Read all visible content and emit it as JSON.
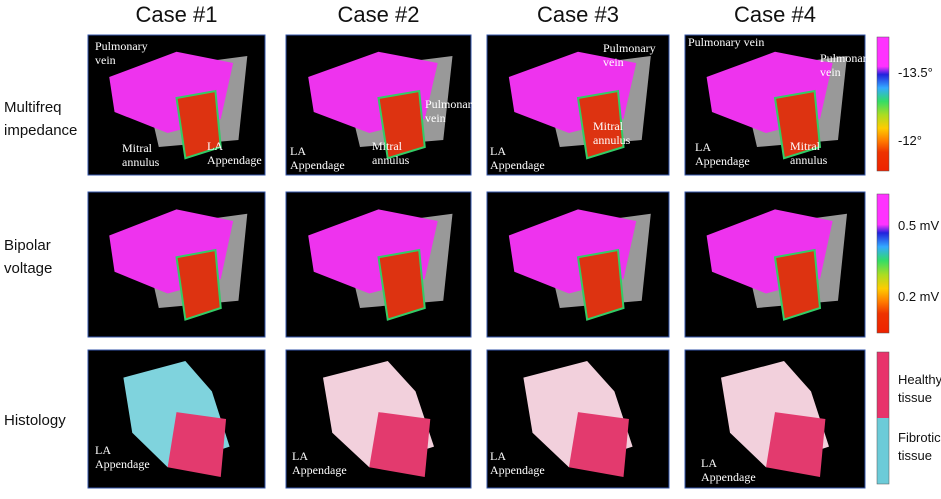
{
  "columns": [
    "Case #1",
    "Case #2",
    "Case #3",
    "Case #4"
  ],
  "rows": [
    {
      "label": [
        "Multifreq",
        "impedance"
      ],
      "panels": [
        {
          "annotations": [
            {
              "lines": [
                "Pulmonary",
                "vein"
              ]
            },
            {
              "lines": [
                "Mitral",
                "annulus"
              ]
            },
            {
              "lines": [
                "LA",
                "Appendage"
              ]
            }
          ]
        },
        {
          "annotations": [
            {
              "lines": [
                "Pulmonary",
                "vein"
              ]
            },
            {
              "lines": [
                "LA",
                "Appendage"
              ]
            },
            {
              "lines": [
                "Mitral",
                "annulus"
              ]
            }
          ]
        },
        {
          "annotations": [
            {
              "lines": [
                "Pulmonary",
                "vein"
              ]
            },
            {
              "lines": [
                "Mitral",
                "annulus"
              ]
            },
            {
              "lines": [
                "LA",
                "Appendage"
              ]
            }
          ]
        },
        {
          "annotations": [
            {
              "lines": [
                "Pulmonary vein"
              ]
            },
            {
              "lines": [
                "Pulmonary",
                "vein"
              ]
            },
            {
              "lines": [
                "LA",
                "Appendage"
              ]
            },
            {
              "lines": [
                "Mitral",
                "annulus"
              ]
            }
          ]
        }
      ],
      "legend": [
        {
          "lines": [
            "-13.5°"
          ]
        },
        {
          "lines": [
            "-12°"
          ]
        }
      ]
    },
    {
      "label": [
        "Bipolar",
        "voltage"
      ],
      "legend": [
        {
          "lines": [
            "0.5 mV"
          ]
        },
        {
          "lines": [
            "0.2 mV"
          ]
        }
      ]
    },
    {
      "label": [
        "Histology"
      ],
      "panels": [
        {
          "annotations": [
            {
              "lines": [
                "LA",
                "Appendage"
              ]
            }
          ]
        },
        {
          "annotations": [
            {
              "lines": [
                "LA",
                "Appendage"
              ]
            }
          ]
        },
        {
          "annotations": [
            {
              "lines": [
                "LA",
                "Appendage"
              ]
            }
          ]
        },
        {
          "annotations": [
            {
              "lines": [
                "LA",
                "Appendage"
              ]
            }
          ]
        }
      ],
      "legend": [
        {
          "lines": [
            "Healthy",
            "tissue"
          ]
        },
        {
          "lines": [
            "Fibrotic",
            "tissue"
          ]
        }
      ]
    }
  ]
}
